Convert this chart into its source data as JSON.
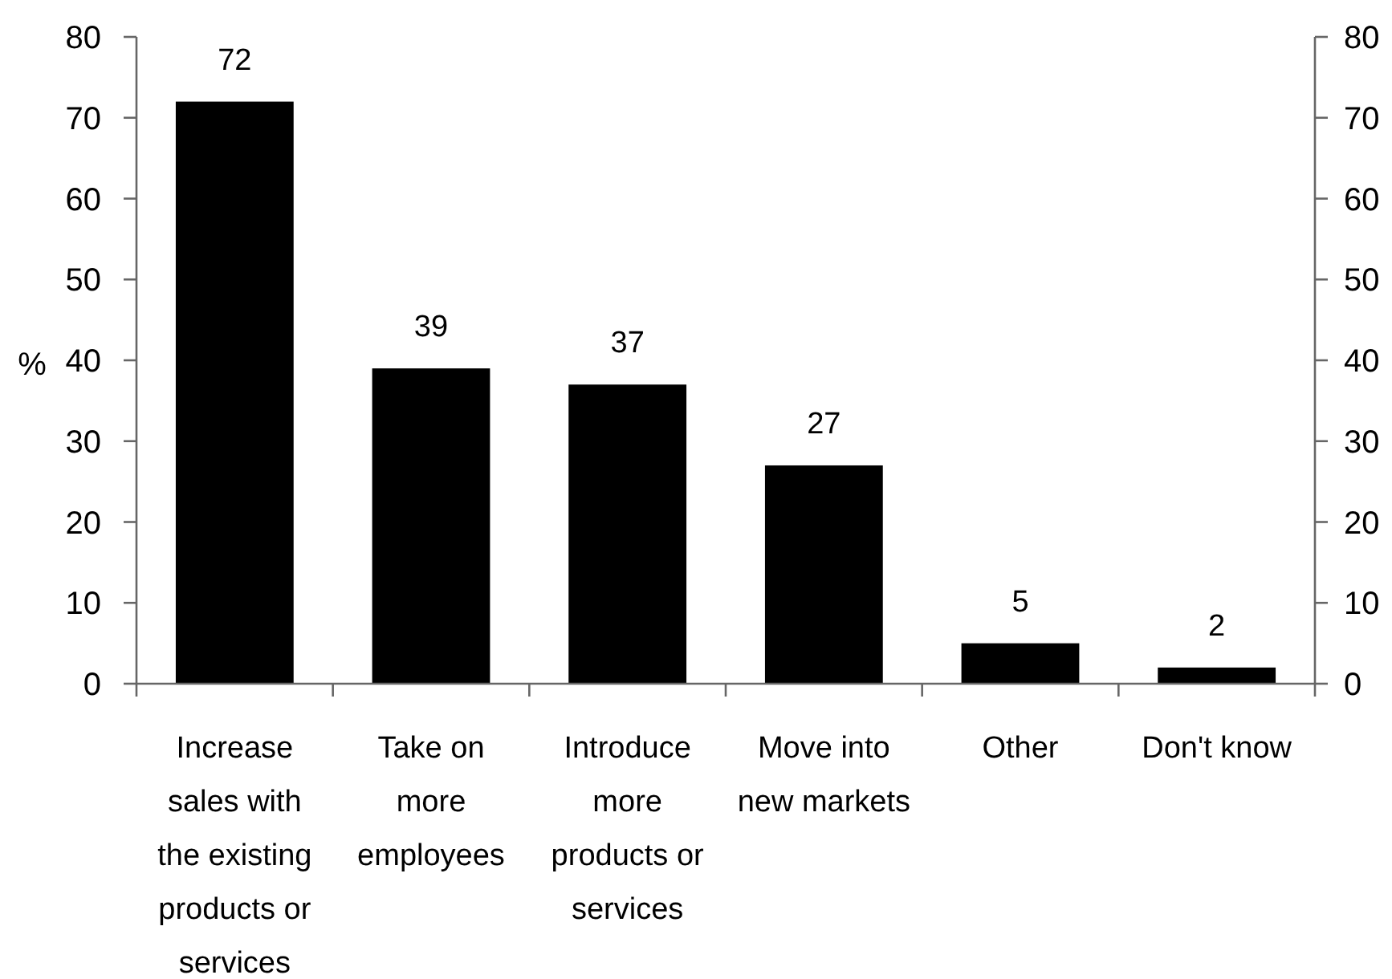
{
  "chart_data": {
    "type": "bar",
    "ylabel": "%",
    "categories": [
      "Increase\nsales with\nthe existing\nproducts or\nservices",
      "Take on\nmore\nemployees",
      "Introduce\nmore\nproducts or\nservices",
      "Move into\nnew markets",
      "Other",
      "Don't know"
    ],
    "values": [
      72,
      39,
      37,
      27,
      5,
      2
    ],
    "color": "#000000",
    "ylim": [
      0,
      80
    ],
    "yticks": [
      0,
      10,
      20,
      30,
      40,
      50,
      60,
      70,
      80
    ],
    "y2lim": [
      0,
      80
    ],
    "y2ticks": [
      0,
      10,
      20,
      30,
      40,
      50,
      60,
      70,
      80
    ],
    "data_labels": true
  }
}
